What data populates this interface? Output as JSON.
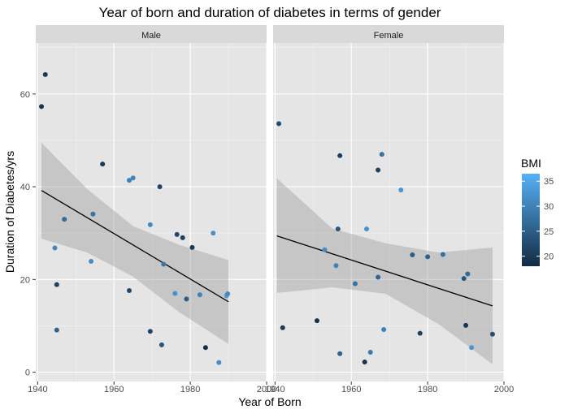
{
  "chart_data": {
    "type": "scatter",
    "title": "Year of born and duration of diabetes in terms of gender",
    "xlabel": "Year of Born",
    "ylabel": "Duration of Diabetes/yrs",
    "xlim": [
      1939.5,
      2000
    ],
    "ylim": [
      -2,
      71
    ],
    "x_ticks": [
      1940,
      1960,
      1980,
      2000
    ],
    "y_ticks": [
      0,
      20,
      40,
      60
    ],
    "grid": true,
    "legend": {
      "title": "BMI",
      "position": "right",
      "range": [
        18,
        36.5
      ],
      "ticks": [
        20,
        25,
        30,
        35
      ],
      "color_low": "#132b43",
      "color_high": "#56b1f7"
    },
    "panel_bg": "#e5e5e5",
    "strip_bg": "#d9d9d9",
    "facets": [
      {
        "name": "Male",
        "fit": {
          "x": [
            1941,
            1990
          ],
          "y": [
            39.2,
            15.2
          ]
        },
        "ci": {
          "x": [
            1941,
            1953,
            1965,
            1977,
            1990
          ],
          "upper": [
            49.5,
            39.5,
            31.5,
            27.5,
            24.2
          ],
          "lower": [
            28.8,
            25.8,
            20.6,
            13.0,
            6.1
          ]
        },
        "points": [
          {
            "x": 1941,
            "y": 57.3,
            "bmi": 19.5
          },
          {
            "x": 1942,
            "y": 64.2,
            "bmi": 20.0
          },
          {
            "x": 1944.5,
            "y": 26.8,
            "bmi": 30.5
          },
          {
            "x": 1945,
            "y": 18.9,
            "bmi": 21.0
          },
          {
            "x": 1945,
            "y": 9.1,
            "bmi": 25.5
          },
          {
            "x": 1947,
            "y": 33.0,
            "bmi": 26.5
          },
          {
            "x": 1954,
            "y": 23.9,
            "bmi": 31.5
          },
          {
            "x": 1954.5,
            "y": 34.1,
            "bmi": 28.0
          },
          {
            "x": 1957,
            "y": 44.9,
            "bmi": 20.0
          },
          {
            "x": 1964,
            "y": 41.4,
            "bmi": 30.0
          },
          {
            "x": 1964,
            "y": 17.6,
            "bmi": 22.0
          },
          {
            "x": 1965,
            "y": 41.9,
            "bmi": 30.5
          },
          {
            "x": 1969.5,
            "y": 31.8,
            "bmi": 31.0
          },
          {
            "x": 1969.5,
            "y": 8.8,
            "bmi": 21.5
          },
          {
            "x": 1972,
            "y": 40.0,
            "bmi": 22.0
          },
          {
            "x": 1972.5,
            "y": 5.9,
            "bmi": 23.5
          },
          {
            "x": 1973,
            "y": 23.3,
            "bmi": 28.5
          },
          {
            "x": 1976,
            "y": 17.0,
            "bmi": 32.0
          },
          {
            "x": 1976.5,
            "y": 29.7,
            "bmi": 22.0
          },
          {
            "x": 1978,
            "y": 29.0,
            "bmi": 21.0
          },
          {
            "x": 1979,
            "y": 15.8,
            "bmi": 24.5
          },
          {
            "x": 1980.5,
            "y": 26.9,
            "bmi": 20.0
          },
          {
            "x": 1982.5,
            "y": 16.7,
            "bmi": 30.0
          },
          {
            "x": 1984,
            "y": 5.3,
            "bmi": 18.5
          },
          {
            "x": 1986,
            "y": 30.0,
            "bmi": 32.0
          },
          {
            "x": 1987.5,
            "y": 2.1,
            "bmi": 31.5
          },
          {
            "x": 1989.5,
            "y": 16.5,
            "bmi": 33.5
          },
          {
            "x": 1989.8,
            "y": 16.9,
            "bmi": 31.0
          }
        ]
      },
      {
        "name": "Female",
        "fit": {
          "x": [
            1940.5,
            1997
          ],
          "y": [
            29.4,
            14.3
          ]
        },
        "ci": {
          "x": [
            1940.5,
            1955,
            1969,
            1983,
            1997
          ],
          "upper": [
            41.8,
            31.0,
            27.8,
            25.8,
            26.9
          ],
          "lower": [
            17.1,
            18.3,
            16.9,
            10.3,
            1.7
          ]
        },
        "points": [
          {
            "x": 1941,
            "y": 53.6,
            "bmi": 22.5
          },
          {
            "x": 1942,
            "y": 9.6,
            "bmi": 20.0
          },
          {
            "x": 1951,
            "y": 11.1,
            "bmi": 19.0
          },
          {
            "x": 1953,
            "y": 26.4,
            "bmi": 31.5
          },
          {
            "x": 1956,
            "y": 23.0,
            "bmi": 30.0
          },
          {
            "x": 1956.5,
            "y": 30.9,
            "bmi": 24.0
          },
          {
            "x": 1957,
            "y": 46.7,
            "bmi": 20.5
          },
          {
            "x": 1957,
            "y": 4.0,
            "bmi": 25.5
          },
          {
            "x": 1961,
            "y": 19.1,
            "bmi": 27.5
          },
          {
            "x": 1963.5,
            "y": 2.2,
            "bmi": 19.0
          },
          {
            "x": 1964,
            "y": 30.9,
            "bmi": 32.0
          },
          {
            "x": 1965,
            "y": 4.3,
            "bmi": 29.0
          },
          {
            "x": 1967,
            "y": 43.6,
            "bmi": 21.0
          },
          {
            "x": 1967,
            "y": 20.5,
            "bmi": 26.0
          },
          {
            "x": 1968,
            "y": 47.0,
            "bmi": 27.5
          },
          {
            "x": 1968.5,
            "y": 9.2,
            "bmi": 30.0
          },
          {
            "x": 1973,
            "y": 39.3,
            "bmi": 33.0
          },
          {
            "x": 1976,
            "y": 25.3,
            "bmi": 25.0
          },
          {
            "x": 1978,
            "y": 8.4,
            "bmi": 21.0
          },
          {
            "x": 1980,
            "y": 24.9,
            "bmi": 25.5
          },
          {
            "x": 1984,
            "y": 25.4,
            "bmi": 27.5
          },
          {
            "x": 1989.5,
            "y": 20.2,
            "bmi": 24.0
          },
          {
            "x": 1990,
            "y": 10.1,
            "bmi": 19.5
          },
          {
            "x": 1990.5,
            "y": 21.2,
            "bmi": 26.5
          },
          {
            "x": 1991.5,
            "y": 5.3,
            "bmi": 32.5
          },
          {
            "x": 1997,
            "y": 8.2,
            "bmi": 23.0
          }
        ]
      }
    ]
  }
}
